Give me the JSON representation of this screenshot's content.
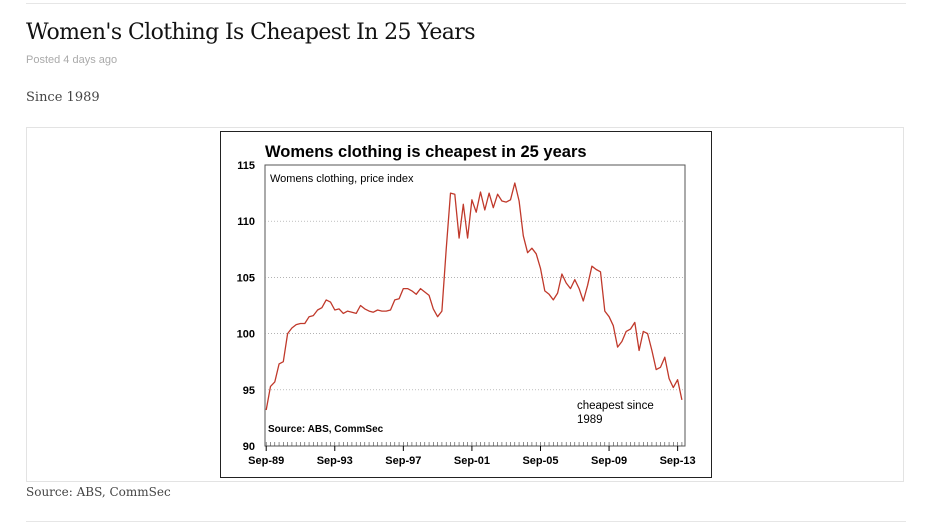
{
  "post": {
    "title": "Women's Clothing Is Cheapest In 25 Years",
    "meta": "Posted 4 days ago",
    "intro": "Since 1989",
    "source": "Source: ABS, CommSec"
  },
  "chart_data": {
    "type": "line",
    "title": "Womens clothing is cheapest in 25 years",
    "subtitle": "Womens clothing, price index",
    "source_label": "Source: ABS, CommSec",
    "annotation": "cheapest since\n1989",
    "xlabel": "",
    "ylabel": "",
    "ylim": [
      90,
      115
    ],
    "yticks": [
      90,
      95,
      100,
      105,
      110,
      115
    ],
    "xlim": [
      1989.6,
      2014.1
    ],
    "xticks": [
      {
        "x": 1989.67,
        "label": "Sep-89"
      },
      {
        "x": 1993.67,
        "label": "Sep-93"
      },
      {
        "x": 1997.67,
        "label": "Sep-97"
      },
      {
        "x": 2001.67,
        "label": "Sep-01"
      },
      {
        "x": 2005.67,
        "label": "Sep-05"
      },
      {
        "x": 2009.67,
        "label": "Sep-09"
      },
      {
        "x": 2013.67,
        "label": "Sep-13"
      }
    ],
    "grid": true,
    "line_color": "#c0392b",
    "series": [
      {
        "name": "",
        "x": [
          1989.67,
          1989.92,
          1990.17,
          1990.42,
          1990.67,
          1990.92,
          1991.17,
          1991.42,
          1991.67,
          1991.92,
          1992.17,
          1992.42,
          1992.67,
          1992.92,
          1993.17,
          1993.42,
          1993.67,
          1993.92,
          1994.17,
          1994.42,
          1994.67,
          1994.92,
          1995.17,
          1995.42,
          1995.67,
          1995.92,
          1996.17,
          1996.42,
          1996.67,
          1996.92,
          1997.17,
          1997.42,
          1997.67,
          1997.92,
          1998.17,
          1998.42,
          1998.67,
          1998.92,
          1999.17,
          1999.42,
          1999.67,
          1999.92,
          2000.17,
          2000.42,
          2000.67,
          2000.92,
          2001.17,
          2001.42,
          2001.67,
          2001.92,
          2002.17,
          2002.42,
          2002.67,
          2002.92,
          2003.17,
          2003.42,
          2003.67,
          2003.92,
          2004.17,
          2004.42,
          2004.67,
          2004.92,
          2005.17,
          2005.42,
          2005.67,
          2005.92,
          2006.17,
          2006.42,
          2006.67,
          2006.92,
          2007.17,
          2007.42,
          2007.67,
          2007.92,
          2008.17,
          2008.42,
          2008.67,
          2008.92,
          2009.17,
          2009.42,
          2009.67,
          2009.92,
          2010.17,
          2010.42,
          2010.67,
          2010.92,
          2011.17,
          2011.42,
          2011.67,
          2011.92,
          2012.17,
          2012.42,
          2012.67,
          2012.92,
          2013.17,
          2013.42,
          2013.67,
          2013.92
        ],
        "values": [
          93.2,
          95.3,
          95.7,
          97.3,
          97.5,
          100.0,
          100.5,
          100.8,
          100.9,
          100.9,
          101.5,
          101.6,
          102.1,
          102.3,
          103.0,
          102.8,
          102.1,
          102.2,
          101.8,
          102.0,
          101.9,
          101.8,
          102.5,
          102.2,
          102.0,
          101.9,
          102.1,
          102.0,
          102.0,
          102.1,
          103.0,
          103.1,
          104.0,
          104.0,
          103.8,
          103.5,
          104.0,
          103.7,
          103.4,
          102.2,
          101.5,
          102.0,
          107.5,
          112.5,
          112.4,
          108.5,
          111.5,
          108.5,
          111.9,
          110.8,
          112.6,
          111.0,
          112.5,
          111.2,
          112.4,
          111.8,
          111.7,
          111.9,
          113.4,
          111.8,
          108.7,
          107.2,
          107.6,
          107.1,
          105.8,
          103.8,
          103.5,
          103.0,
          103.6,
          105.3,
          104.5,
          104.0,
          104.8,
          104.0,
          102.9,
          104.3,
          106.0,
          105.7,
          105.5,
          102.0,
          101.5,
          100.7,
          98.8,
          99.3,
          100.2,
          100.4,
          101.0,
          98.5,
          100.2,
          100.0,
          98.5,
          96.8,
          97.0,
          97.9,
          96.0,
          95.2,
          95.9,
          94.1
        ]
      }
    ]
  }
}
